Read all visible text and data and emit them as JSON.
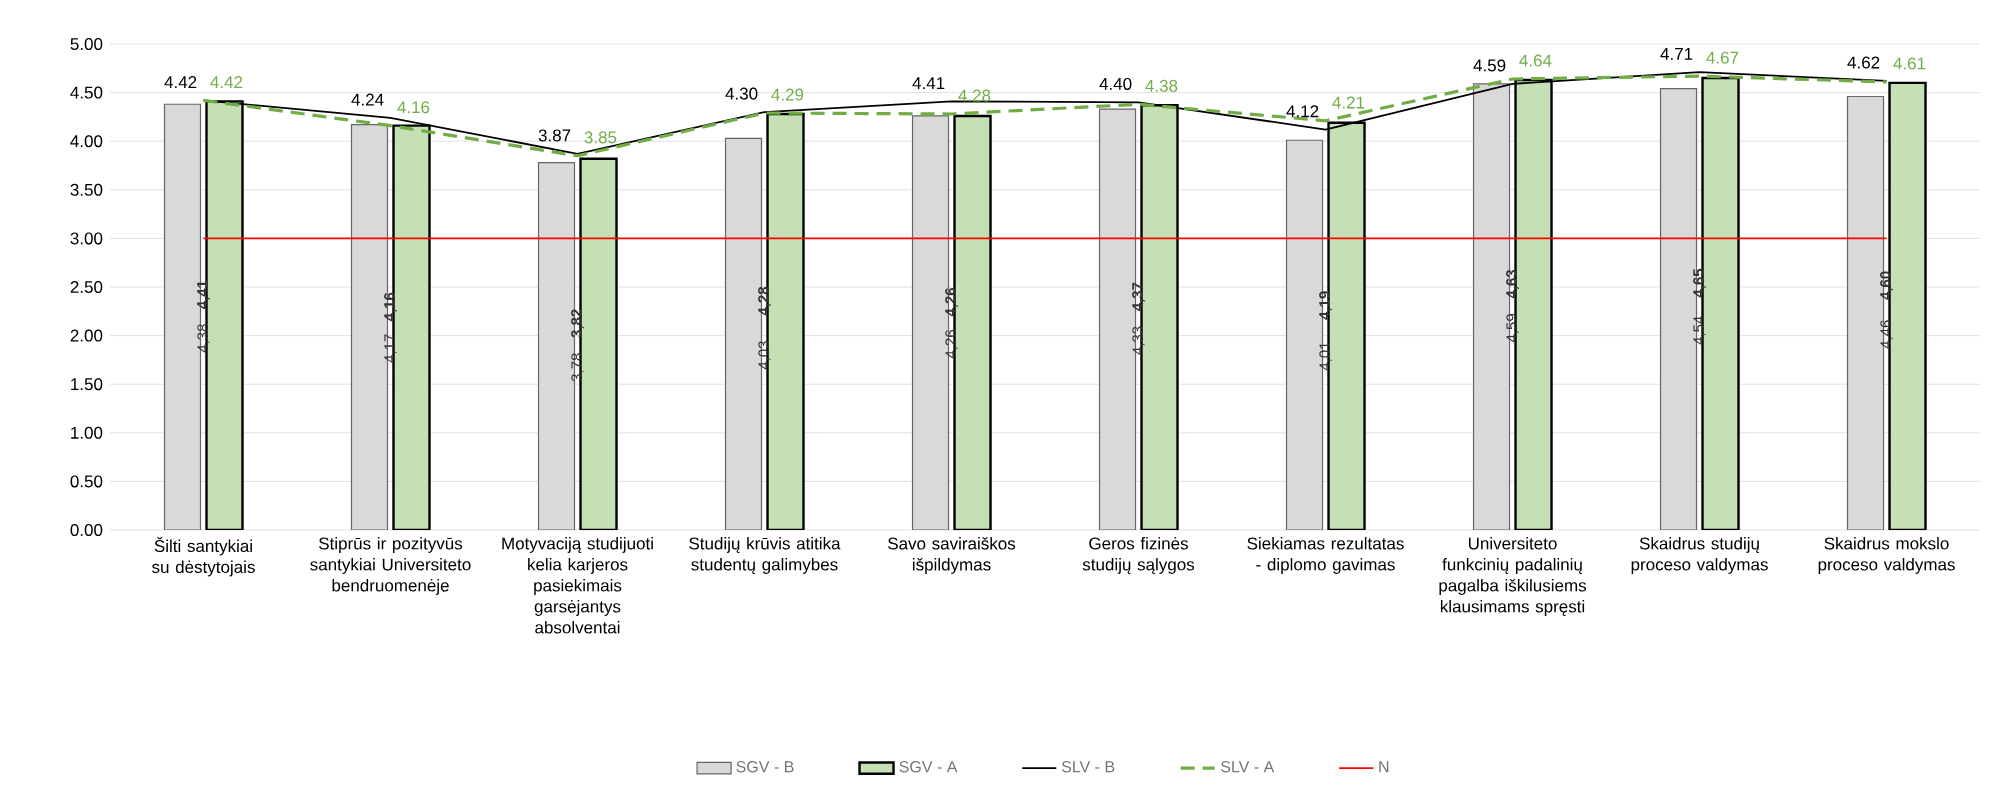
{
  "chart_data": {
    "type": "bar",
    "categories": [
      "Šilti santykiai su dėstytojais",
      "Stiprūs ir pozityvūs santykiai Universiteto bendruomenėje",
      "Motyvaciją studijuoti kelia karjeros pasiekimais garsėjantys absolventai",
      "Studijų krūvis atitika studentų galimybes",
      "Savo saviraiškos išpildymas",
      "Geros fizinės studijų sąlygos",
      "Siekiamas rezultatas - diplomo gavimas",
      "Universiteto funkcinių padalinių pagalba iškilusiems klausimams spręsti",
      "Skaidrus studijų proceso valdymas",
      "Skaidrus mokslo proceso valdymas"
    ],
    "ylim": [
      0,
      5
    ],
    "yticks": [
      {
        "value": 0,
        "label": "0.00"
      },
      {
        "value": 0.5,
        "label": "0.50"
      },
      {
        "value": 1,
        "label": "1.00"
      },
      {
        "value": 1.5,
        "label": "1.50"
      },
      {
        "value": 2,
        "label": "2.00"
      },
      {
        "value": 2.5,
        "label": "2.50"
      },
      {
        "value": 3,
        "label": "3.00"
      },
      {
        "value": 3.5,
        "label": "3.50"
      },
      {
        "value": 4,
        "label": "4.00"
      },
      {
        "value": 4.5,
        "label": "4.50"
      },
      {
        "value": 5,
        "label": "5.00"
      }
    ],
    "grid": "y",
    "legend": "bottom",
    "series": [
      {
        "name": "SGV - B",
        "color": "#d9d9d9",
        "values": [
          4.38,
          4.17,
          3.78,
          4.03,
          4.26,
          4.33,
          4.01,
          4.59,
          4.54,
          4.46
        ],
        "value_labels": [
          "4,38",
          "4,17",
          "3,78",
          "4,03",
          "4,26",
          "4,33",
          "4,01",
          "4,59",
          "4,54",
          "4,46"
        ]
      },
      {
        "name": "SGV - A",
        "color": "#c5e0b4",
        "values": [
          4.41,
          4.16,
          3.82,
          4.28,
          4.26,
          4.37,
          4.19,
          4.63,
          4.65,
          4.6
        ],
        "value_labels": [
          "4,41",
          "4,16",
          "3,82",
          "4,28",
          "4,26",
          "4,37",
          "4,19",
          "4,63",
          "4,65",
          "4,60"
        ]
      },
      {
        "name": "SLV - B",
        "type": "line",
        "color": "#000000",
        "line_style": "solid",
        "values": [
          4.42,
          4.24,
          3.87,
          4.3,
          4.41,
          4.4,
          4.12,
          4.59,
          4.71,
          4.62
        ],
        "value_labels": [
          "4.42",
          "4.24",
          "3.87",
          "4.30",
          "4.41",
          "4.40",
          "4.12",
          "4.59",
          "4.71",
          "4.62"
        ]
      },
      {
        "name": "SLV - A",
        "type": "line",
        "color": "#70ad47",
        "line_style": "dashed",
        "values": [
          4.42,
          4.16,
          3.85,
          4.29,
          4.28,
          4.38,
          4.21,
          4.64,
          4.67,
          4.61
        ],
        "value_labels": [
          "4.42",
          "4.16",
          "3.85",
          "4.29",
          "4.28",
          "4.38",
          "4.21",
          "4.64",
          "4.67",
          "4.61"
        ]
      },
      {
        "name": "N",
        "type": "line",
        "color": "#ff0000",
        "line_style": "solid",
        "marker": "none",
        "values": [
          3,
          3,
          3,
          3,
          3,
          3,
          3,
          3,
          3,
          3
        ]
      }
    ]
  }
}
